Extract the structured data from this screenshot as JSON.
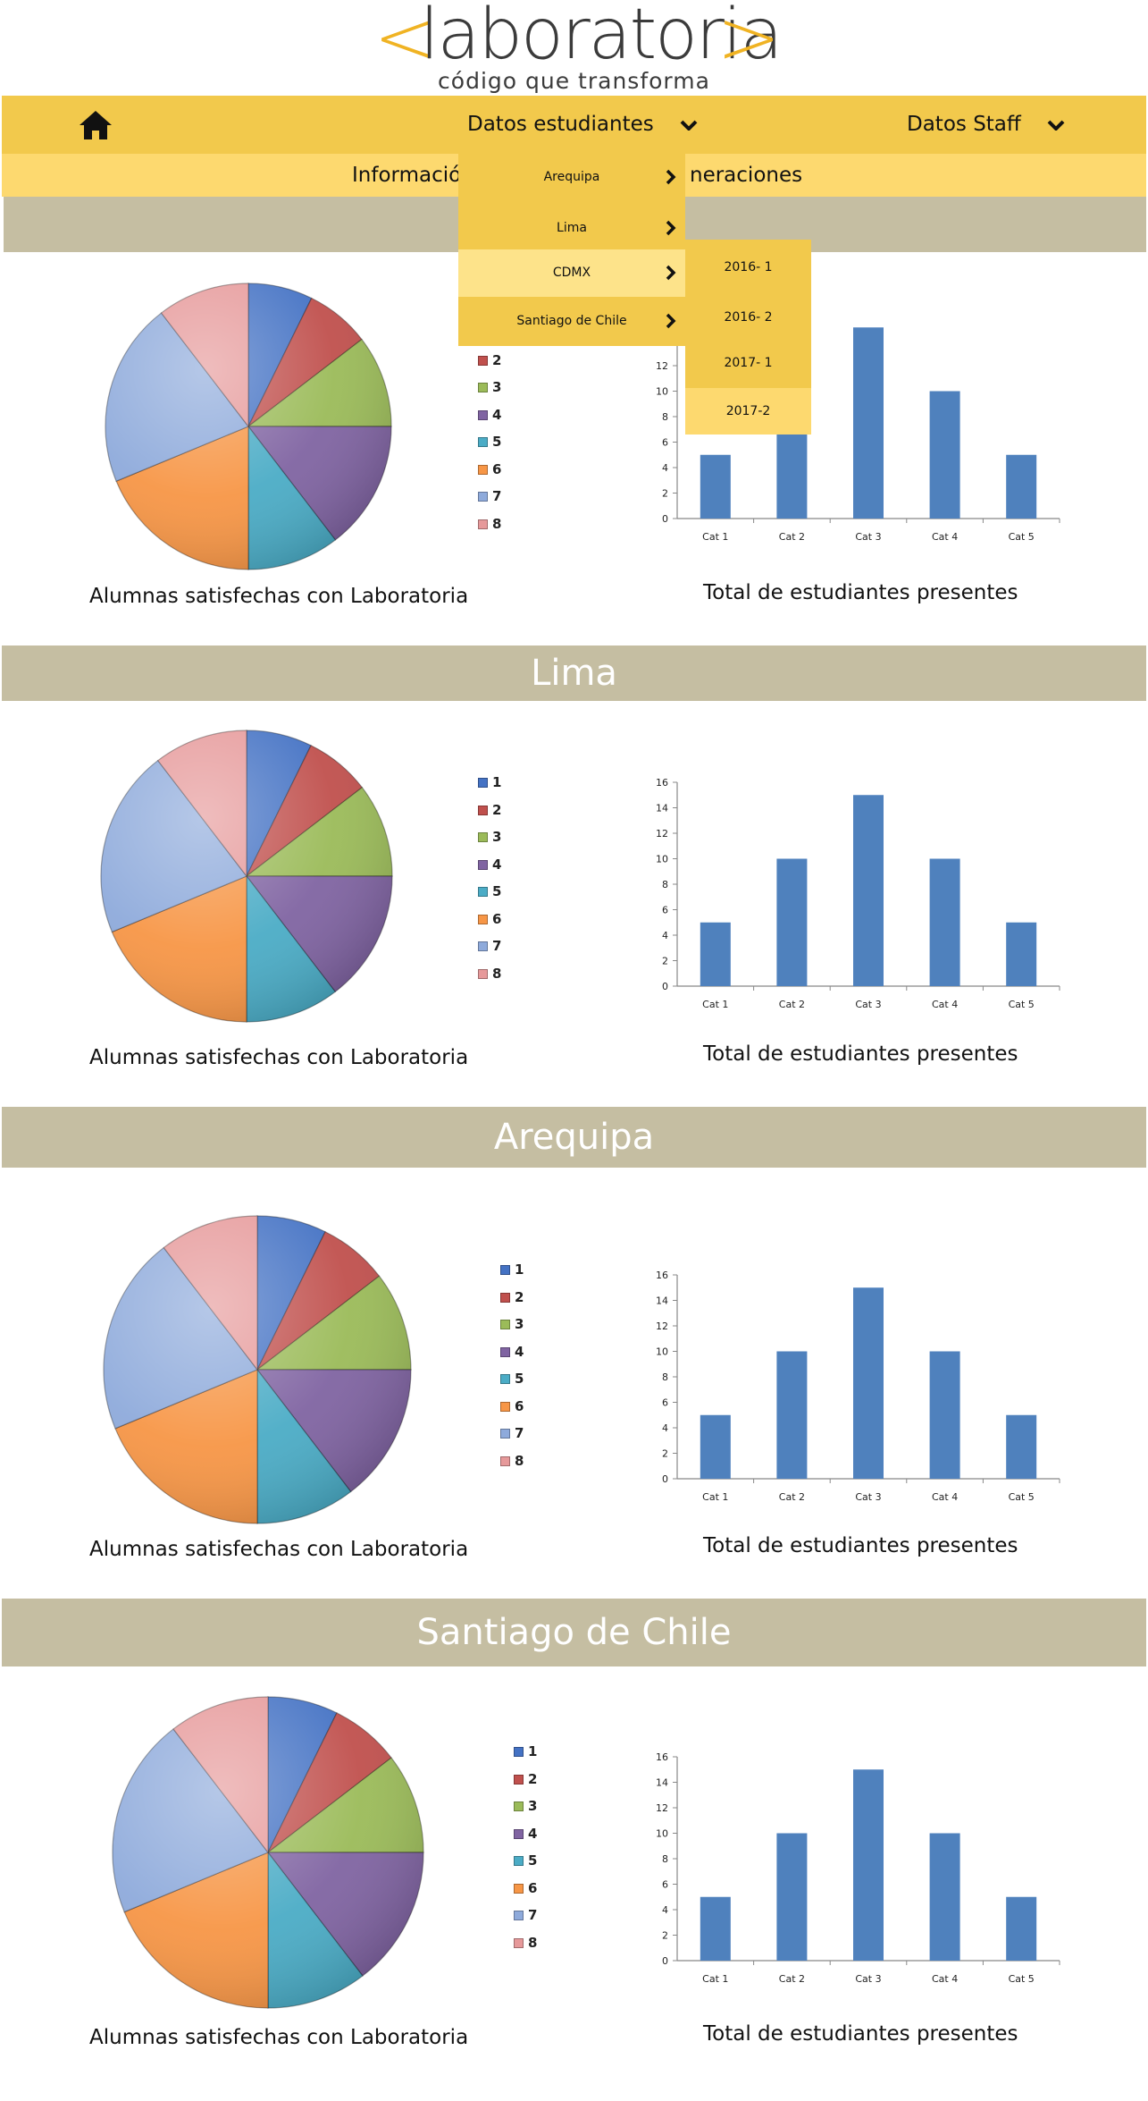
{
  "logo": {
    "left_bracket": "<",
    "word": "laboratoria",
    "right_bracket": ">",
    "tagline": "código que transforma"
  },
  "nav": {
    "home_icon": "home-icon",
    "items": [
      {
        "label": "Datos estudiantes"
      },
      {
        "label": "Datos Staff"
      }
    ],
    "sub_left": "Informació",
    "sub_right": "neraciones"
  },
  "dropdown": {
    "cities": [
      {
        "label": "Arequipa"
      },
      {
        "label": "Lima"
      },
      {
        "label": "CDMX"
      },
      {
        "label": "Santiago de Chile"
      }
    ],
    "generations": [
      {
        "label": "2016- 1"
      },
      {
        "label": "2016- 2"
      },
      {
        "label": "2017- 1"
      },
      {
        "label": "2017-2"
      }
    ]
  },
  "captions": {
    "pie": "Alumnas satisfechas con Laboratoria",
    "bar": "Total de estudiantes presentes"
  },
  "sections": [
    {
      "title": ""
    },
    {
      "title": "Lima"
    },
    {
      "title": "Arequipa"
    },
    {
      "title": "Santiago de Chile"
    }
  ],
  "colors": {
    "nav": "#f2c94c",
    "subnav": "#fdd96f",
    "section_band": "#c5bea2",
    "bar": "#4f81bd",
    "logo_accent": "#f0b323"
  },
  "chart_data": [
    {
      "type": "pie",
      "categories": [
        "1",
        "2",
        "3",
        "4",
        "5",
        "6",
        "7",
        "8"
      ],
      "values": [
        7,
        7,
        10,
        14,
        10,
        18,
        20,
        10
      ],
      "colors": [
        "#4472c4",
        "#c0504d",
        "#9bbb59",
        "#8064a2",
        "#4bacc6",
        "#f79646",
        "#8eaadb",
        "#e6999a"
      ],
      "legend": "right"
    },
    {
      "type": "bar",
      "categories": [
        "Cat 1",
        "Cat 2",
        "Cat 3",
        "Cat 4",
        "Cat 5"
      ],
      "values": [
        5,
        10,
        15,
        10,
        5
      ],
      "yticks": [
        "0",
        "2",
        "4",
        "6",
        "8",
        "10",
        "12",
        "14",
        "16"
      ],
      "ylim": [
        0,
        16
      ]
    }
  ]
}
